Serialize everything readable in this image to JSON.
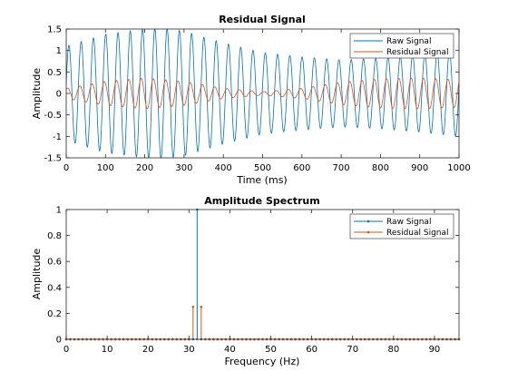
{
  "colors": {
    "raw": "#0072BD",
    "residual": "#D95319",
    "axes": "#262626",
    "background": "#ffffff"
  },
  "chart_data": [
    {
      "type": "line",
      "title": "Residual Signal",
      "xlabel": "Time (ms)",
      "ylabel": "Amplitude",
      "xlim": [
        0,
        1000
      ],
      "ylim": [
        -1.5,
        1.5
      ],
      "xticks": [
        0,
        100,
        200,
        300,
        400,
        500,
        600,
        700,
        800,
        900,
        1000
      ],
      "yticks": [
        -1.5,
        -1,
        -0.5,
        0,
        0.5,
        1,
        1.5
      ],
      "xtick_labels": [
        "0",
        "100",
        "200",
        "300",
        "400",
        "500",
        "600",
        "700",
        "800",
        "900",
        "1000"
      ],
      "ytick_labels": [
        "-1.5",
        "-1",
        "-0.5",
        "0",
        "0.5",
        "1",
        "1.5"
      ],
      "legend_position": "top-right",
      "grid": false,
      "series": [
        {
          "name": "Raw Signal",
          "color": "#0072BD",
          "frequency_hz": 32,
          "envelope_t": [
            0,
            100,
            200,
            250,
            300,
            400,
            500,
            600,
            700,
            800,
            900,
            1000
          ],
          "envelope_amp": [
            1.1,
            1.38,
            1.5,
            1.52,
            1.45,
            1.18,
            0.95,
            0.85,
            0.78,
            0.82,
            0.9,
            1.0
          ]
        },
        {
          "name": "Residual Signal",
          "color": "#D95319",
          "frequency_hz": 32,
          "envelope_t": [
            0,
            100,
            200,
            300,
            400,
            500,
            600,
            700,
            800,
            900,
            1000
          ],
          "envelope_amp": [
            0.12,
            0.28,
            0.36,
            0.28,
            0.12,
            0.04,
            0.12,
            0.26,
            0.34,
            0.36,
            0.32
          ]
        }
      ]
    },
    {
      "type": "stem",
      "title": "Amplitude Spectrum",
      "xlabel": "Frequency (Hz)",
      "ylabel": "Amplitude",
      "xlim": [
        0,
        96
      ],
      "ylim": [
        0,
        1
      ],
      "xticks": [
        0,
        10,
        20,
        30,
        40,
        50,
        60,
        70,
        80,
        90
      ],
      "yticks": [
        0,
        0.2,
        0.4,
        0.6,
        0.8,
        1
      ],
      "xtick_labels": [
        "0",
        "10",
        "20",
        "30",
        "40",
        "50",
        "60",
        "70",
        "80",
        "90"
      ],
      "ytick_labels": [
        "0",
        "0.2",
        "0.4",
        "0.6",
        "0.8",
        "1"
      ],
      "legend_position": "top-right",
      "grid": false,
      "x": [
        0,
        1,
        2,
        3,
        4,
        5,
        6,
        7,
        8,
        9,
        10,
        11,
        12,
        13,
        14,
        15,
        16,
        17,
        18,
        19,
        20,
        21,
        22,
        23,
        24,
        25,
        26,
        27,
        28,
        29,
        30,
        31,
        32,
        33,
        34,
        35,
        36,
        37,
        38,
        39,
        40,
        41,
        42,
        43,
        44,
        45,
        46,
        47,
        48,
        49,
        50,
        51,
        52,
        53,
        54,
        55,
        56,
        57,
        58,
        59,
        60,
        61,
        62,
        63,
        64,
        65,
        66,
        67,
        68,
        69,
        70,
        71,
        72,
        73,
        74,
        75,
        76,
        77,
        78,
        79,
        80,
        81,
        82,
        83,
        84,
        85,
        86,
        87,
        88,
        89,
        90,
        91,
        92,
        93,
        94,
        95,
        96
      ],
      "series": [
        {
          "name": "Raw Signal",
          "color": "#0072BD",
          "nonzero": [
            {
              "x": 32,
              "y": 1.0
            }
          ]
        },
        {
          "name": "Residual Signal",
          "color": "#D95319",
          "nonzero": [
            {
              "x": 31,
              "y": 0.25
            },
            {
              "x": 33,
              "y": 0.25
            }
          ]
        }
      ]
    }
  ]
}
